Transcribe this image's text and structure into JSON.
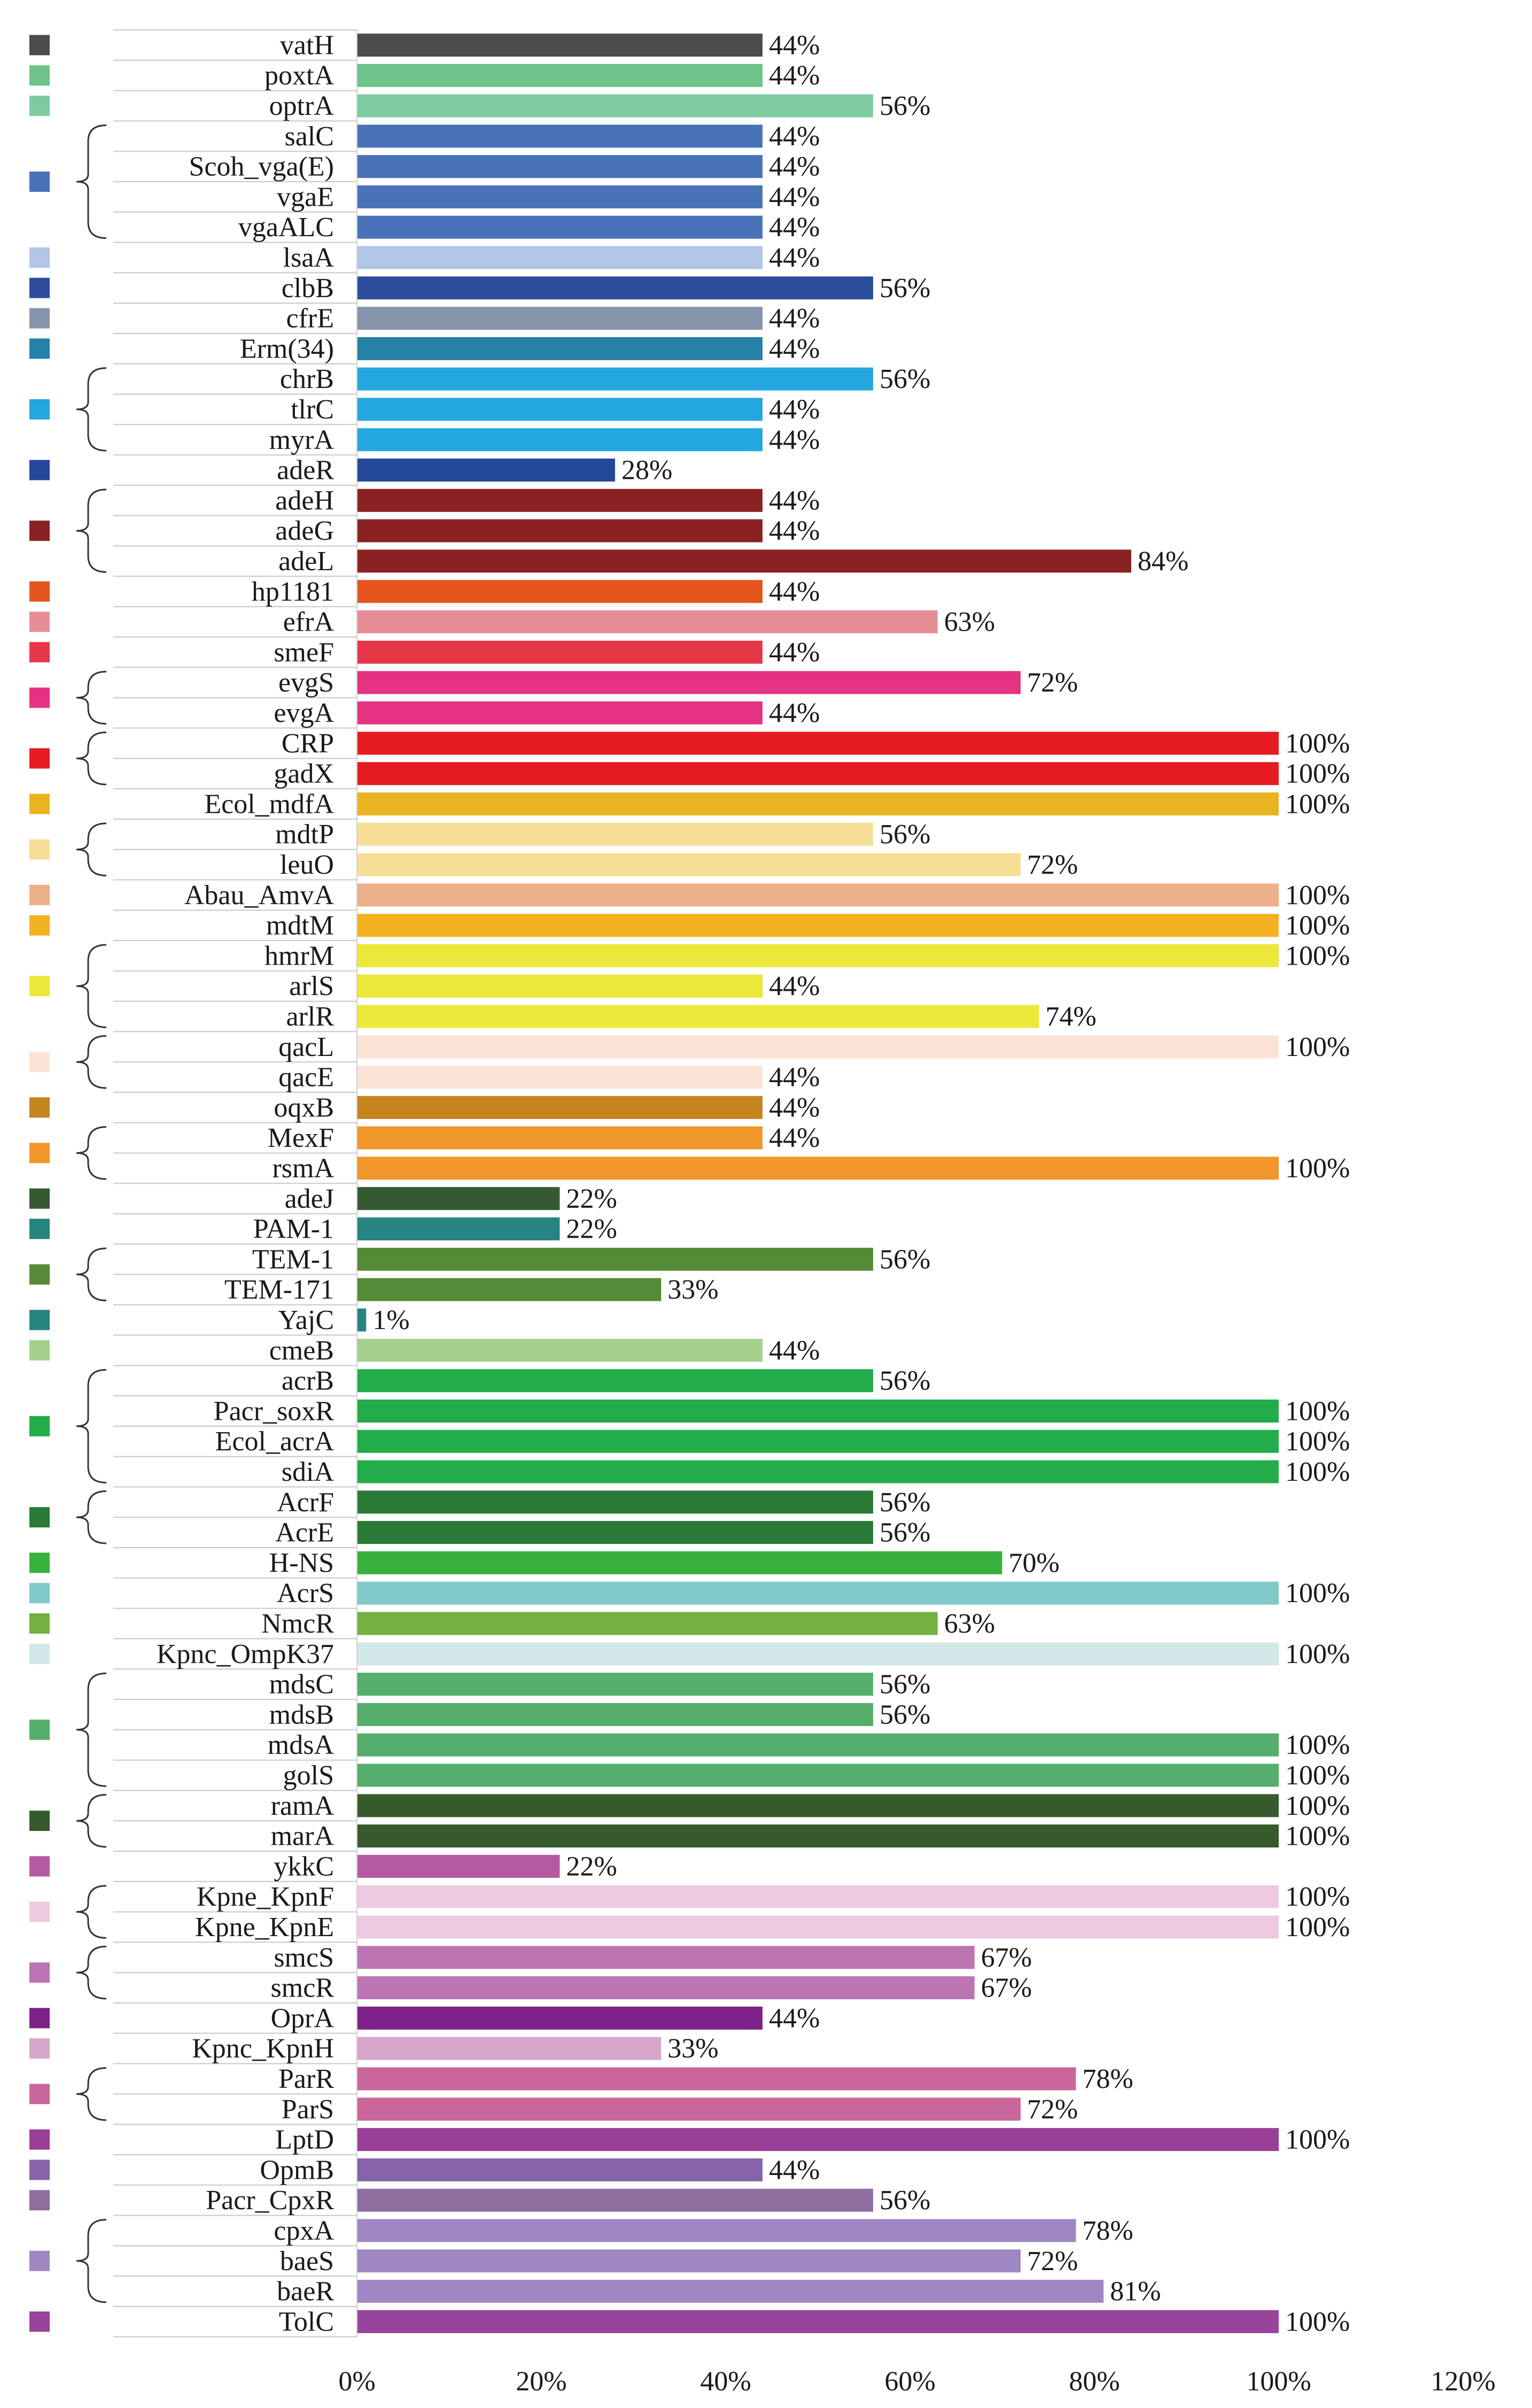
{
  "chart_data": {
    "type": "bar",
    "orientation": "horizontal",
    "title": "",
    "xlabel": "",
    "ylabel": "",
    "xlim": [
      0,
      120
    ],
    "x_ticks": [
      "0%",
      "20%",
      "40%",
      "60%",
      "80%",
      "100%",
      "120%"
    ],
    "grid": false,
    "legend": "left color squares with braces grouping related genes",
    "categories": [
      "vatH",
      "poxtA",
      "optrA",
      "salC",
      "Scoh_vga(E)",
      "vgaE",
      "vgaALC",
      "lsaA",
      "clbB",
      "cfrE",
      "Erm(34)",
      "chrB",
      "tlrC",
      "myrA",
      "adeR",
      "adeH",
      "adeG",
      "adeL",
      "hp1181",
      "efrA",
      "smeF",
      "evgS",
      "evgA",
      "CRP",
      "gadX",
      "Ecol_mdfA",
      "mdtP",
      "leuO",
      "Abau_AmvA",
      "mdtM",
      "hmrM",
      "arlS",
      "arlR",
      "qacL",
      "qacE",
      "oqxB",
      "MexF",
      "rsmA",
      "adeJ",
      "PAM-1",
      "TEM-1",
      "TEM-171",
      "YajC",
      "cmeB",
      "acrB",
      "Pacr_soxR",
      "Ecol_acrA",
      "sdiA",
      "AcrF",
      "AcrE",
      "H-NS",
      "AcrS",
      "NmcR",
      "Kpnc_OmpK37",
      "mdsC",
      "mdsB",
      "mdsA",
      "golS",
      "ramA",
      "marA",
      "ykkC",
      "Kpne_KpnF",
      "Kpne_KpnE",
      "smcS",
      "smcR",
      "OprA",
      "Kpnc_KpnH",
      "ParR",
      "ParS",
      "LptD",
      "OpmB",
      "Pacr_CpxR",
      "cpxA",
      "baeS",
      "baeR",
      "TolC"
    ],
    "values": [
      44,
      44,
      56,
      44,
      44,
      44,
      44,
      44,
      56,
      44,
      44,
      56,
      44,
      44,
      28,
      44,
      44,
      84,
      44,
      63,
      44,
      72,
      44,
      100,
      100,
      100,
      56,
      72,
      100,
      100,
      100,
      44,
      74,
      100,
      44,
      44,
      44,
      100,
      22,
      22,
      56,
      33,
      1,
      44,
      56,
      100,
      100,
      100,
      56,
      56,
      70,
      100,
      63,
      100,
      56,
      56,
      100,
      100,
      100,
      100,
      22,
      100,
      100,
      67,
      67,
      44,
      33,
      78,
      72,
      100,
      44,
      56,
      78,
      72,
      81,
      100
    ],
    "value_labels": [
      "44%",
      "44%",
      "56%",
      "44%",
      "44%",
      "44%",
      "44%",
      "44%",
      "56%",
      "44%",
      "44%",
      "56%",
      "44%",
      "44%",
      "28%",
      "44%",
      "44%",
      "84%",
      "44%",
      "63%",
      "44%",
      "72%",
      "44%",
      "100%",
      "100%",
      "100%",
      "56%",
      "72%",
      "100%",
      "100%",
      "100%",
      "44%",
      "74%",
      "100%",
      "44%",
      "44%",
      "44%",
      "100%",
      "22%",
      "22%",
      "56%",
      "33%",
      "1%",
      "44%",
      "56%",
      "100%",
      "100%",
      "100%",
      "56%",
      "56%",
      "70%",
      "100%",
      "63%",
      "100%",
      "56%",
      "56%",
      "100%",
      "100%",
      "100%",
      "100%",
      "22%",
      "100%",
      "100%",
      "67%",
      "67%",
      "44%",
      "33%",
      "78%",
      "72%",
      "100%",
      "44%",
      "56%",
      "78%",
      "72%",
      "81%",
      "100%"
    ],
    "groups": [
      {
        "start": 0,
        "end": 0,
        "color": "#4c4c4c"
      },
      {
        "start": 1,
        "end": 1,
        "color": "#6dc389"
      },
      {
        "start": 2,
        "end": 2,
        "color": "#7ecba0"
      },
      {
        "start": 3,
        "end": 6,
        "color": "#4a72b9"
      },
      {
        "start": 7,
        "end": 7,
        "color": "#b1c6e6"
      },
      {
        "start": 8,
        "end": 8,
        "color": "#2d4e9a"
      },
      {
        "start": 9,
        "end": 9,
        "color": "#8694ab"
      },
      {
        "start": 10,
        "end": 10,
        "color": "#2581a7"
      },
      {
        "start": 11,
        "end": 13,
        "color": "#24a6df"
      },
      {
        "start": 14,
        "end": 14,
        "color": "#24489b"
      },
      {
        "start": 15,
        "end": 17,
        "color": "#8b2222"
      },
      {
        "start": 18,
        "end": 18,
        "color": "#e4561c"
      },
      {
        "start": 19,
        "end": 19,
        "color": "#e68e96"
      },
      {
        "start": 20,
        "end": 20,
        "color": "#e63749"
      },
      {
        "start": 21,
        "end": 22,
        "color": "#e43383"
      },
      {
        "start": 23,
        "end": 24,
        "color": "#e61b22"
      },
      {
        "start": 25,
        "end": 25,
        "color": "#e8b422"
      },
      {
        "start": 26,
        "end": 27,
        "color": "#f5de95"
      },
      {
        "start": 28,
        "end": 28,
        "color": "#ecb08a"
      },
      {
        "start": 29,
        "end": 29,
        "color": "#f3b221"
      },
      {
        "start": 30,
        "end": 32,
        "color": "#ece83a"
      },
      {
        "start": 33,
        "end": 34,
        "color": "#fbe4d5"
      },
      {
        "start": 35,
        "end": 35,
        "color": "#c6841f"
      },
      {
        "start": 36,
        "end": 37,
        "color": "#f0962a"
      },
      {
        "start": 38,
        "end": 38,
        "color": "#355a32"
      },
      {
        "start": 39,
        "end": 39,
        "color": "#268580"
      },
      {
        "start": 40,
        "end": 41,
        "color": "#558a36"
      },
      {
        "start": 42,
        "end": 42,
        "color": "#268580"
      },
      {
        "start": 43,
        "end": 43,
        "color": "#a5d08b"
      },
      {
        "start": 44,
        "end": 47,
        "color": "#22ad4a"
      },
      {
        "start": 48,
        "end": 49,
        "color": "#2b7a38"
      },
      {
        "start": 50,
        "end": 50,
        "color": "#39b13e"
      },
      {
        "start": 51,
        "end": 51,
        "color": "#81c9c8"
      },
      {
        "start": 52,
        "end": 52,
        "color": "#73b242"
      },
      {
        "start": 53,
        "end": 53,
        "color": "#d3e9e9"
      },
      {
        "start": 54,
        "end": 57,
        "color": "#56ae6c"
      },
      {
        "start": 58,
        "end": 59,
        "color": "#365a2c"
      },
      {
        "start": 60,
        "end": 60,
        "color": "#b45aa2"
      },
      {
        "start": 61,
        "end": 62,
        "color": "#edcae1"
      },
      {
        "start": 63,
        "end": 64,
        "color": "#bc74b2"
      },
      {
        "start": 65,
        "end": 65,
        "color": "#7e2188"
      },
      {
        "start": 66,
        "end": 66,
        "color": "#d7a6cb"
      },
      {
        "start": 67,
        "end": 68,
        "color": "#c9679c"
      },
      {
        "start": 69,
        "end": 69,
        "color": "#9a3f97"
      },
      {
        "start": 70,
        "end": 70,
        "color": "#8663ab"
      },
      {
        "start": 71,
        "end": 71,
        "color": "#8e6fa0"
      },
      {
        "start": 72,
        "end": 74,
        "color": "#9e87c2"
      },
      {
        "start": 75,
        "end": 75,
        "color": "#97449a"
      }
    ]
  }
}
